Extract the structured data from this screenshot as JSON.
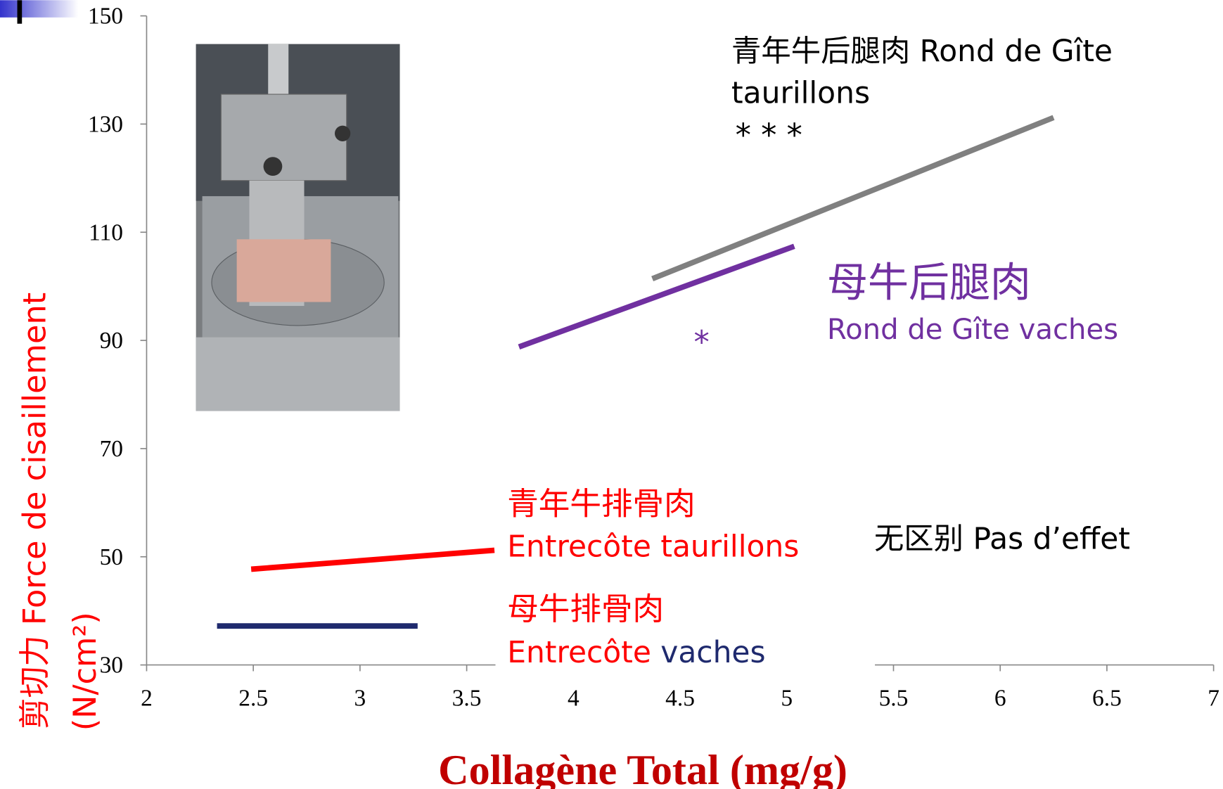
{
  "chart_data": {
    "type": "line",
    "title": "Collagène Total (mg/g)",
    "y_label": [
      "剪切力    Force de cisaillement",
      "(N/cm²)"
    ],
    "title_color": "#c00000",
    "y_label_color": "#ff0000",
    "xlim": [
      2,
      7
    ],
    "ylim": [
      30,
      150
    ],
    "xticks": [
      2,
      2.5,
      3,
      3.5,
      4,
      4.5,
      5,
      5.5,
      6,
      6.5,
      7
    ],
    "yticks": [
      30,
      50,
      70,
      90,
      110,
      130,
      150
    ],
    "grid": false,
    "series": [
      {
        "color": "#808080",
        "x": [
          4.37,
          6.25
        ],
        "values": [
          101.4,
          131.2
        ]
      },
      {
        "color": "#7030a0",
        "x": [
          3.745,
          5.035
        ],
        "values": [
          88.8,
          107.4
        ]
      },
      {
        "color": "#ff0000",
        "x": [
          2.49,
          3.63
        ],
        "values": [
          47.7,
          51.2
        ]
      },
      {
        "color": "#1f2a6e",
        "x": [
          2.33,
          3.27
        ],
        "values": [
          37.2,
          37.2
        ]
      }
    ],
    "annotations": [
      {
        "lines": [
          {
            "parts": [
              {
                "text": "青年牛后腿肉 Rond de Gîte",
                "color": "#000000"
              }
            ]
          },
          {
            "parts": [
              {
                "text": "taurillons",
                "color": "#000000"
              }
            ]
          }
        ]
      },
      {
        "lines": [
          {
            "parts": [
              {
                "text": "* * *",
                "color": "#000000"
              }
            ]
          }
        ]
      },
      {
        "lines": [
          {
            "parts": [
              {
                "text": "母牛后腿肉",
                "color": "#7030a0"
              }
            ]
          },
          {
            "parts": [
              {
                "text": "Rond de Gîte vaches",
                "color": "#7030a0"
              }
            ]
          }
        ]
      },
      {
        "lines": [
          {
            "parts": [
              {
                "text": "*",
                "color": "#7030a0"
              }
            ]
          }
        ]
      },
      {
        "lines": [
          {
            "parts": [
              {
                "text": "青年牛排骨肉",
                "color": "#ff0000"
              }
            ]
          },
          {
            "parts": [
              {
                "text": "Entrecôte taurillons",
                "color": "#ff0000"
              }
            ]
          }
        ]
      },
      {
        "lines": [
          {
            "parts": [
              {
                "text": "母牛排骨肉",
                "color": "#ff0000"
              }
            ]
          },
          {
            "parts": [
              {
                "text": "Entrecôte",
                "color": "#ff0000"
              },
              {
                "text": "vaches",
                "color": "#1f2a6e"
              }
            ]
          }
        ]
      },
      {
        "lines": [
          {
            "parts": [
              {
                "text": "无区别 Pas d’effet",
                "color": "#000000"
              }
            ]
          }
        ]
      }
    ]
  }
}
